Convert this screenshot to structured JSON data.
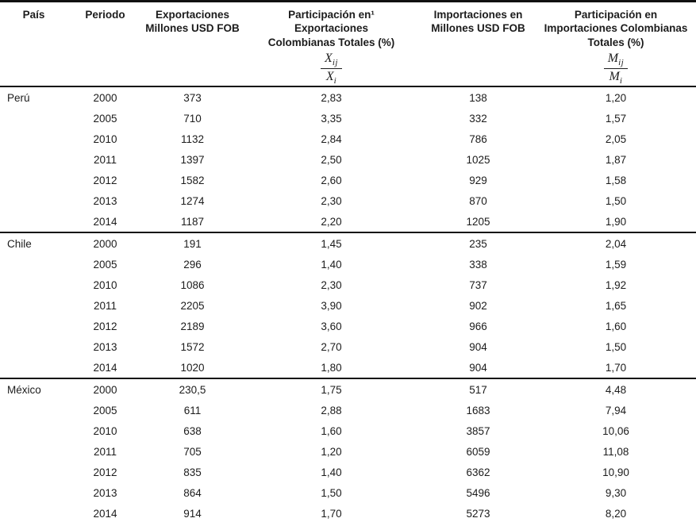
{
  "table": {
    "columns": [
      {
        "label": "País"
      },
      {
        "label": "Periodo"
      },
      {
        "label": "Exportaciones\nMillones USD FOB"
      },
      {
        "label": "Participación en¹\nExportaciones\nColombianas Totales (%)",
        "formula": {
          "num": "X",
          "num_sub": "ij",
          "den": "X",
          "den_sub": "i"
        }
      },
      {
        "label": "Importaciones en\nMillones USD FOB"
      },
      {
        "label": "Participación en\nImportaciones Colombianas\nTotales (%)",
        "formula": {
          "num": "M",
          "num_sub": "ij",
          "den": "M",
          "den_sub": "i"
        }
      }
    ],
    "groups": [
      {
        "country": "Perú",
        "rows": [
          [
            "2000",
            "373",
            "2,83",
            "138",
            "1,20"
          ],
          [
            "2005",
            "710",
            "3,35",
            "332",
            "1,57"
          ],
          [
            "2010",
            "1132",
            "2,84",
            "786",
            "2,05"
          ],
          [
            "2011",
            "1397",
            "2,50",
            "1025",
            "1,87"
          ],
          [
            "2012",
            "1582",
            "2,60",
            "929",
            "1,58"
          ],
          [
            "2013",
            "1274",
            "2,30",
            "870",
            "1,50"
          ],
          [
            "2014",
            "1187",
            "2,20",
            "1205",
            "1,90"
          ]
        ]
      },
      {
        "country": "Chile",
        "rows": [
          [
            "2000",
            "191",
            "1,45",
            "235",
            "2,04"
          ],
          [
            "2005",
            "296",
            "1,40",
            "338",
            "1,59"
          ],
          [
            "2010",
            "1086",
            "2,30",
            "737",
            "1,92"
          ],
          [
            "2011",
            "2205",
            "3,90",
            "902",
            "1,65"
          ],
          [
            "2012",
            "2189",
            "3,60",
            "966",
            "1,60"
          ],
          [
            "2013",
            "1572",
            "2,70",
            "904",
            "1,50"
          ],
          [
            "2014",
            "1020",
            "1,80",
            "904",
            "1,70"
          ]
        ]
      },
      {
        "country": "México",
        "rows": [
          [
            "2000",
            "230,5",
            "1,75",
            "517",
            "4,48"
          ],
          [
            "2005",
            "611",
            "2,88",
            "1683",
            "7,94"
          ],
          [
            "2010",
            "638",
            "1,60",
            "3857",
            "10,06"
          ],
          [
            "2011",
            "705",
            "1,20",
            "6059",
            "11,08"
          ],
          [
            "2012",
            "835",
            "1,40",
            "6362",
            "10,90"
          ],
          [
            "2013",
            "864",
            "1,50",
            "5496",
            "9,30"
          ],
          [
            "2014",
            "914",
            "1,70",
            "5273",
            "8,20"
          ]
        ]
      }
    ]
  }
}
